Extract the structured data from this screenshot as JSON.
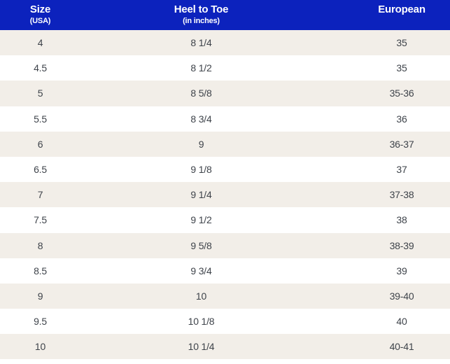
{
  "colors": {
    "header_bg": "#0c22bd",
    "header_text": "#ffffff",
    "row_bg": "#ffffff",
    "row_alt_bg": "#f2eee8",
    "cell_text": "#3e434a"
  },
  "table": {
    "columns": [
      {
        "title": "Size",
        "subtitle": "(USA)"
      },
      {
        "title": "Heel to Toe",
        "subtitle": "(in inches)"
      },
      {
        "title": "European",
        "subtitle": ""
      }
    ],
    "rows": [
      {
        "usa": "4",
        "heel_to_toe": "8 1/4",
        "european": "35"
      },
      {
        "usa": "4.5",
        "heel_to_toe": "8 1/2",
        "european": "35"
      },
      {
        "usa": "5",
        "heel_to_toe": "8 5/8",
        "european": "35-36"
      },
      {
        "usa": "5.5",
        "heel_to_toe": "8 3/4",
        "european": "36"
      },
      {
        "usa": "6",
        "heel_to_toe": "9",
        "european": "36-37"
      },
      {
        "usa": "6.5",
        "heel_to_toe": "9 1/8",
        "european": "37"
      },
      {
        "usa": "7",
        "heel_to_toe": "9 1/4",
        "european": "37-38"
      },
      {
        "usa": "7.5",
        "heel_to_toe": "9 1/2",
        "european": "38"
      },
      {
        "usa": "8",
        "heel_to_toe": "9 5/8",
        "european": "38-39"
      },
      {
        "usa": "8.5",
        "heel_to_toe": "9 3/4",
        "european": "39"
      },
      {
        "usa": "9",
        "heel_to_toe": "10",
        "european": "39-40"
      },
      {
        "usa": "9.5",
        "heel_to_toe": "10 1/8",
        "european": "40"
      },
      {
        "usa": "10",
        "heel_to_toe": "10 1/4",
        "european": "40-41"
      }
    ]
  }
}
